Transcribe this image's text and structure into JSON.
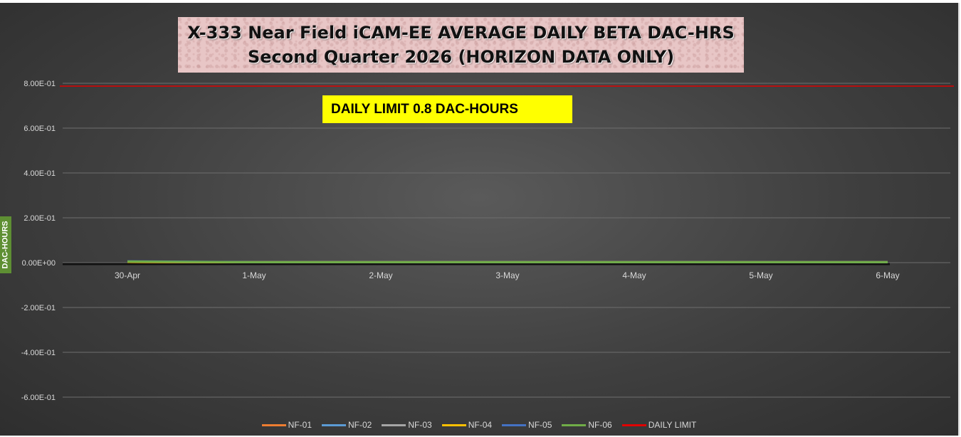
{
  "chart_data": {
    "type": "line",
    "title_line1": "X-333 Near Field iCAM-EE AVERAGE DAILY BETA DAC-HRS",
    "title_line2": "Second Quarter 2026 (HORIZON DATA ONLY)",
    "annotation": "DAILY LIMIT 0.8 DAC-HOURS",
    "ylabel": "DAC-HOURS",
    "categories": [
      "30-Apr",
      "1-May",
      "2-May",
      "3-May",
      "4-May",
      "5-May",
      "6-May"
    ],
    "y_ticks": [
      "8.00E-01",
      "6.00E-01",
      "4.00E-01",
      "2.00E-01",
      "0.00E+00",
      "-2.00E-01",
      "-4.00E-01",
      "-6.00E-01"
    ],
    "y_tick_values": [
      0.8,
      0.6,
      0.4,
      0.2,
      0.0,
      -0.2,
      -0.4,
      -0.6
    ],
    "ylim": [
      -0.6,
      0.8
    ],
    "grid": true,
    "legend_position": "bottom",
    "series": [
      {
        "name": "NF-01",
        "color": "#ed7d31",
        "values": [
          0.003,
          0.002,
          0.002,
          0.002,
          0.002,
          0.002,
          0.002
        ]
      },
      {
        "name": "NF-02",
        "color": "#5b9bd5",
        "values": [
          0.004,
          0.002,
          0.002,
          0.002,
          0.002,
          0.002,
          0.002
        ]
      },
      {
        "name": "NF-03",
        "color": "#a5a5a5",
        "values": [
          0.003,
          0.002,
          0.002,
          0.002,
          0.002,
          0.002,
          0.002
        ]
      },
      {
        "name": "NF-04",
        "color": "#ffc000",
        "values": [
          0.003,
          0.002,
          0.002,
          0.002,
          0.002,
          0.002,
          0.002
        ]
      },
      {
        "name": "NF-05",
        "color": "#4472c4",
        "values": [
          0.006,
          0.002,
          0.002,
          0.002,
          0.002,
          0.002,
          0.002
        ]
      },
      {
        "name": "NF-06",
        "color": "#70ad47",
        "values": [
          0.005,
          0.002,
          0.002,
          0.002,
          0.002,
          0.002,
          0.002
        ]
      }
    ],
    "limit": {
      "name": "DAILY LIMIT",
      "color": "#e00000",
      "value": 0.8
    }
  }
}
